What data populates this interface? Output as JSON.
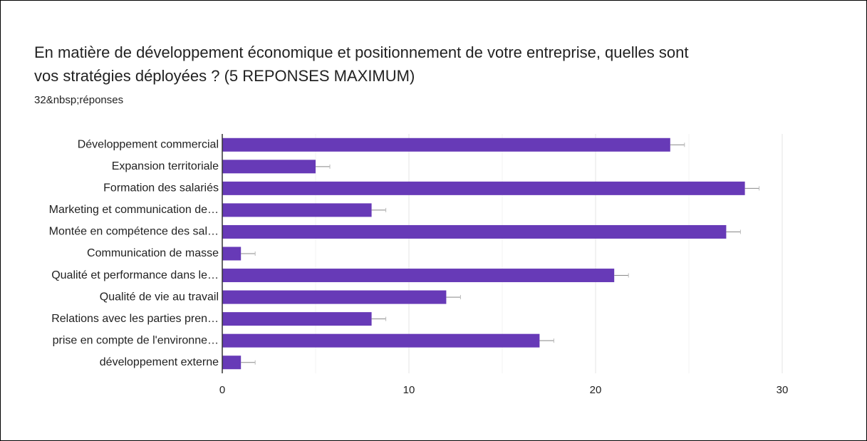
{
  "chart_data": {
    "type": "barh",
    "title": "En matière de développement économique et positionnement de votre entreprise, quelles sont",
    "title_line2": "vos stratégies déployées ? (5 REPONSES MAXIMUM)",
    "subtitle": "32&nbsp;réponses",
    "categories": [
      "Développement commercial",
      "Expansion territoriale",
      "Formation des salariés",
      "Marketing et communication de…",
      "Montée en compétence des sal…",
      "Communication de masse",
      "Qualité et performance dans le…",
      "Qualité de vie au travail",
      "Relations avec les parties pren…",
      "prise en compte de l'environne…",
      "développement externe"
    ],
    "values": [
      24,
      5,
      28,
      8,
      27,
      1,
      21,
      12,
      8,
      17,
      1
    ],
    "color": "#673ab7",
    "xlim": [
      0,
      30
    ],
    "xticks": [
      0,
      10,
      20,
      30
    ],
    "grid": true
  }
}
